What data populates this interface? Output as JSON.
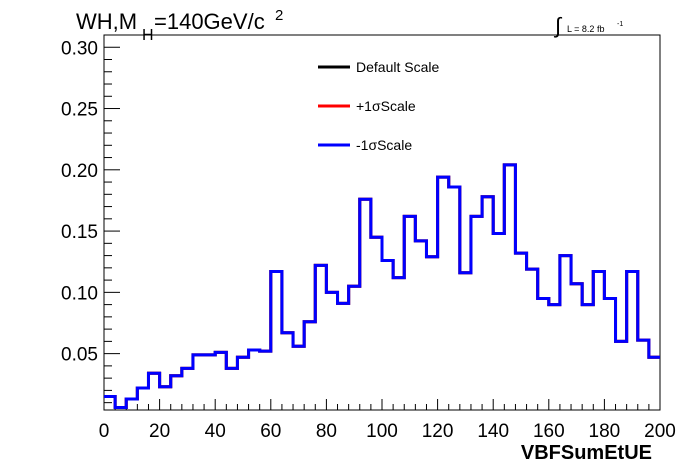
{
  "chart_data": {
    "type": "line",
    "step": true,
    "title": {
      "main": "WH,M",
      "sub": "H",
      "rest": "=140GeV/c",
      "sup": "2"
    },
    "lumi": {
      "integral": "∫",
      "text": "L = 8.2 fb",
      "sup": "-1"
    },
    "xlabel": "VBFSumEtUE",
    "ylabel": "",
    "xlim": [
      0,
      200
    ],
    "ylim": [
      0.004,
      0.31
    ],
    "xticks": [
      0,
      20,
      40,
      60,
      80,
      100,
      120,
      140,
      160,
      180,
      200
    ],
    "xtick_labels": [
      "0",
      "20",
      "40",
      "60",
      "80",
      "100",
      "120",
      "140",
      "160",
      "180",
      "200"
    ],
    "yticks": [
      0.05,
      0.1,
      0.15,
      0.2,
      0.25,
      0.3
    ],
    "ytick_labels": [
      "0.05",
      "0.10",
      "0.15",
      "0.20",
      "0.25",
      "0.30"
    ],
    "bin_edges": [
      0,
      4,
      8,
      12,
      16,
      20,
      24,
      28,
      32,
      36,
      40,
      44,
      48,
      52,
      56,
      60,
      64,
      68,
      72,
      76,
      80,
      84,
      88,
      92,
      96,
      100,
      104,
      108,
      112,
      116,
      120,
      124,
      128,
      132,
      136,
      140,
      144,
      148,
      152,
      156,
      160,
      164,
      168,
      172,
      176,
      180,
      184,
      188,
      192,
      196,
      200
    ],
    "legend_position": "top-center",
    "series": [
      {
        "name": "Default Scale",
        "color": "#000000",
        "values": [
          0.015,
          0.006,
          0.013,
          0.022,
          0.034,
          0.023,
          0.032,
          0.038,
          0.049,
          0.049,
          0.051,
          0.038,
          0.047,
          0.053,
          0.052,
          0.117,
          0.067,
          0.056,
          0.076,
          0.122,
          0.1,
          0.091,
          0.105,
          0.176,
          0.145,
          0.126,
          0.112,
          0.162,
          0.142,
          0.129,
          0.194,
          0.186,
          0.116,
          0.162,
          0.178,
          0.148,
          0.204,
          0.132,
          0.119,
          0.095,
          0.09,
          0.13,
          0.107,
          0.09,
          0.117,
          0.095,
          0.06,
          0.117,
          0.061,
          0.047
        ]
      },
      {
        "name": "+1σScale",
        "color": "#ff0000",
        "values": [
          0.015,
          0.006,
          0.013,
          0.022,
          0.034,
          0.023,
          0.032,
          0.038,
          0.049,
          0.049,
          0.051,
          0.038,
          0.047,
          0.053,
          0.052,
          0.117,
          0.067,
          0.056,
          0.076,
          0.122,
          0.1,
          0.091,
          0.105,
          0.176,
          0.145,
          0.126,
          0.112,
          0.162,
          0.142,
          0.129,
          0.194,
          0.186,
          0.116,
          0.162,
          0.178,
          0.148,
          0.204,
          0.132,
          0.119,
          0.095,
          0.09,
          0.13,
          0.107,
          0.09,
          0.117,
          0.095,
          0.06,
          0.117,
          0.061,
          0.047
        ]
      },
      {
        "name": "-1σScale",
        "color": "#0000ff",
        "values": [
          0.015,
          0.006,
          0.013,
          0.022,
          0.034,
          0.023,
          0.032,
          0.038,
          0.049,
          0.049,
          0.051,
          0.038,
          0.047,
          0.053,
          0.052,
          0.117,
          0.067,
          0.056,
          0.076,
          0.122,
          0.1,
          0.091,
          0.105,
          0.176,
          0.145,
          0.126,
          0.112,
          0.162,
          0.142,
          0.129,
          0.194,
          0.186,
          0.116,
          0.162,
          0.178,
          0.148,
          0.204,
          0.132,
          0.119,
          0.095,
          0.09,
          0.13,
          0.107,
          0.09,
          0.117,
          0.095,
          0.06,
          0.117,
          0.061,
          0.047
        ]
      }
    ]
  }
}
